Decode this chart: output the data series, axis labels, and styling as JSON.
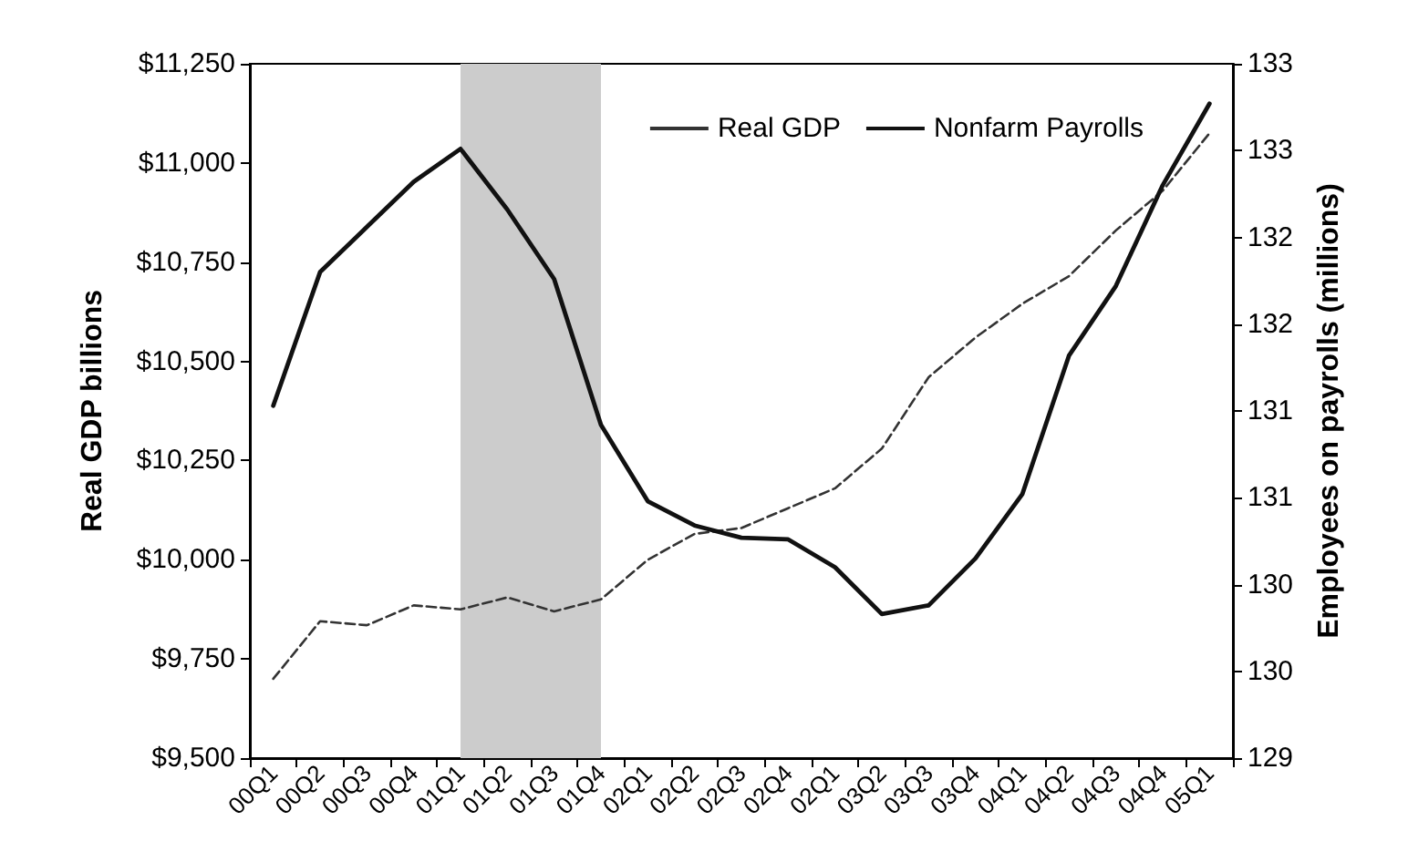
{
  "chart_data": {
    "type": "line",
    "ylabel": "Real GDP billions",
    "y2label": "Employees on payrolls (millions)",
    "categories": [
      "00Q1",
      "00Q2",
      "00Q3",
      "00Q4",
      "01Q1",
      "01Q2",
      "01Q3",
      "01Q4",
      "02Q1",
      "02Q2",
      "02Q3",
      "02Q4",
      "02Q1",
      "03Q2",
      "03Q3",
      "03Q4",
      "04Q1",
      "04Q2",
      "04Q3",
      "04Q4",
      "05Q1"
    ],
    "series": [
      {
        "name": "Real GDP",
        "color": "#333333",
        "line_style": "dashed",
        "values": [
          9700,
          9845,
          9835,
          9885,
          9875,
          9905,
          9870,
          9900,
          10000,
          10065,
          10080,
          10130,
          10180,
          10280,
          10460,
          10560,
          10645,
          10715,
          10830,
          10930,
          11075
        ]
      },
      {
        "name": "Nonfarm Payrolls",
        "color": "#111111",
        "line_style": "solid",
        "axis": "y2",
        "values": [
          131.03,
          131.8,
          132.06,
          132.32,
          132.51,
          132.16,
          131.76,
          130.92,
          130.48,
          130.34,
          130.27,
          130.26,
          130.1,
          129.83,
          129.88,
          130.15,
          130.52,
          131.32,
          131.72,
          132.3,
          132.77
        ]
      }
    ],
    "ylim": [
      9500,
      11250
    ],
    "yticks": [
      {
        "value": 9500,
        "label": "$9,500"
      },
      {
        "value": 9750,
        "label": "$9,750"
      },
      {
        "value": 10000,
        "label": "$10,000"
      },
      {
        "value": 10250,
        "label": "$10,250"
      },
      {
        "value": 10500,
        "label": "$10,500"
      },
      {
        "value": 10750,
        "label": "$10,750"
      },
      {
        "value": 11000,
        "label": "$11,000"
      },
      {
        "value": 11250,
        "label": "$11,250"
      }
    ],
    "y2lim": [
      129,
      133
    ],
    "y2ticks": [
      129,
      {
        "value": 129.5,
        "label": "130"
      },
      130,
      {
        "value": 130.5,
        "label": "131"
      },
      131,
      {
        "value": 131.5,
        "label": "132"
      },
      132,
      {
        "value": 132.5,
        "label": "133"
      },
      133
    ],
    "bands": [
      {
        "axis": "x",
        "from": "01Q1",
        "to": "01Q4",
        "color": "#cccccc"
      }
    ],
    "legend": "top right",
    "grid": false,
    "marker": "none"
  }
}
